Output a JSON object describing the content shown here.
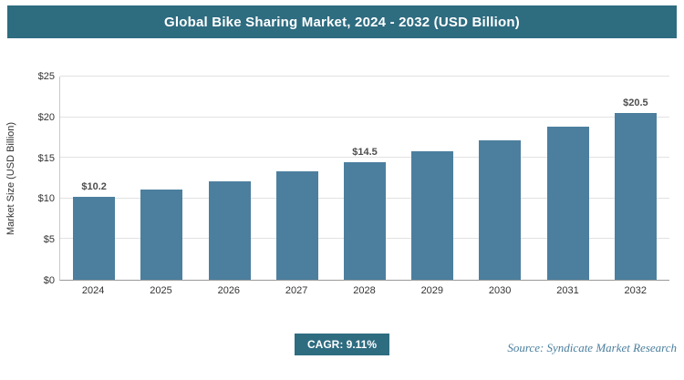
{
  "header": {
    "title": "Global Bike Sharing Market, 2024 - 2032 (USD Billion)"
  },
  "chart_data": {
    "type": "bar",
    "title": "Global Bike Sharing Market, 2024 - 2032 (USD Billion)",
    "categories": [
      "2024",
      "2025",
      "2026",
      "2027",
      "2028",
      "2029",
      "2030",
      "2031",
      "2032"
    ],
    "values": [
      10.2,
      11.1,
      12.1,
      13.3,
      14.5,
      15.8,
      17.2,
      18.8,
      20.5
    ],
    "bar_labels": [
      "$10.2",
      "",
      "",
      "",
      "$14.5",
      "",
      "",
      "",
      "$20.5"
    ],
    "xlabel": "",
    "ylabel": "Market Size (USD Billion)",
    "ylim": [
      0,
      25
    ],
    "ytick_values": [
      0,
      5,
      10,
      15,
      20,
      25
    ],
    "ytick_labels": [
      "$0",
      "$5",
      "$10",
      "$15",
      "$20",
      "$25"
    ],
    "grid": true,
    "legend": "none",
    "bar_color": "#4C7F9E"
  },
  "footer": {
    "cagr_label": "CAGR: 9.11%",
    "source": "Source: Syndicate Market Research"
  },
  "colors": {
    "header_bg": "#2E6C80",
    "bar": "#4C7F9E",
    "badge_bg": "#2E6C80",
    "source_text": "#4A7E9D",
    "gridline": "#e2e2e2"
  }
}
